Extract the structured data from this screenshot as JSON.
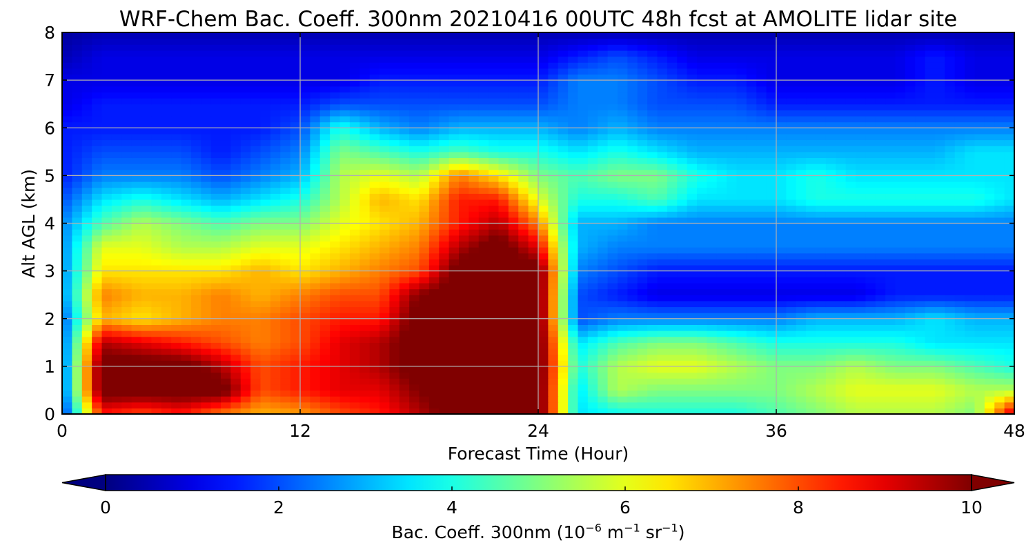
{
  "chart_data": {
    "type": "heatmap",
    "title": "WRF-Chem Bac. Coeff. 300nm  20210416 00UTC 48h fcst at AMOLITE lidar site",
    "xlabel": "Forecast Time (Hour)",
    "ylabel": "Alt AGL (km)",
    "xlim": [
      0,
      48
    ],
    "ylim": [
      0,
      8
    ],
    "xticks": [
      0,
      12,
      24,
      36,
      48
    ],
    "yticks": [
      0,
      1,
      2,
      3,
      4,
      5,
      6,
      7,
      8
    ],
    "grid": true,
    "colormap": "jet",
    "colorbar": {
      "label_main": "Bac. Coeff. 300nm  (10",
      "label_exp1": "−6",
      "label_mid": " m",
      "label_exp2": "−1",
      "label_mid2": " sr",
      "label_exp3": "−1",
      "label_end": ")",
      "range": [
        0,
        10
      ],
      "ticks": [
        0,
        2,
        4,
        6,
        8,
        10
      ],
      "extend": "both",
      "placement": "bottom"
    },
    "x_hours": [
      0,
      2,
      4,
      6,
      8,
      10,
      12,
      14,
      16,
      18,
      20,
      22,
      24,
      26,
      28,
      30,
      32,
      34,
      36,
      38,
      40,
      42,
      44,
      46,
      48
    ],
    "y_km": [
      0,
      0.5,
      1,
      1.5,
      2,
      2.5,
      3,
      3.5,
      4,
      4.5,
      5,
      5.5,
      6,
      6.5,
      7,
      7.5,
      8
    ],
    "values": [
      [
        1.5,
        8.5,
        8.0,
        8.5,
        7.5,
        7.0,
        7.2,
        8.0,
        8.5,
        9.5,
        10.5,
        10.5,
        10.5,
        3.5,
        3.8,
        4.0,
        4.0,
        4.0,
        4.5,
        5.0,
        5.5,
        5.5,
        5.5,
        5.0,
        9.5
      ],
      [
        2.0,
        10.5,
        10.5,
        10.5,
        10.5,
        8.0,
        8.5,
        9.0,
        9.0,
        10.0,
        10.5,
        10.5,
        10.5,
        3.5,
        5.5,
        5.0,
        5.0,
        5.0,
        5.0,
        5.5,
        6.0,
        6.0,
        6.0,
        5.5,
        5.5
      ],
      [
        2.0,
        10.5,
        10.5,
        10.5,
        9.5,
        8.0,
        8.5,
        9.0,
        9.5,
        10.5,
        10.5,
        10.5,
        10.5,
        4.0,
        5.5,
        6.0,
        6.0,
        5.5,
        5.0,
        5.0,
        5.5,
        5.0,
        5.0,
        4.5,
        4.0
      ],
      [
        2.0,
        9.5,
        9.0,
        8.5,
        8.0,
        7.5,
        8.0,
        9.0,
        9.5,
        10.5,
        10.5,
        10.5,
        10.5,
        3.5,
        4.5,
        5.0,
        5.0,
        4.5,
        4.0,
        4.0,
        4.0,
        4.0,
        3.5,
        3.5,
        3.5
      ],
      [
        2.0,
        7.0,
        6.5,
        7.0,
        7.5,
        7.5,
        8.0,
        8.5,
        8.5,
        10.5,
        10.5,
        10.5,
        10.5,
        2.0,
        2.5,
        2.5,
        2.5,
        2.5,
        2.5,
        3.0,
        3.0,
        3.0,
        3.5,
        3.0,
        3.0
      ],
      [
        2.5,
        7.5,
        7.0,
        7.0,
        7.5,
        7.0,
        7.5,
        8.0,
        8.0,
        10.0,
        10.5,
        10.5,
        10.5,
        2.0,
        1.5,
        1.0,
        1.0,
        1.0,
        1.0,
        1.0,
        1.0,
        1.5,
        1.5,
        1.5,
        1.5
      ],
      [
        2.5,
        6.5,
        6.5,
        6.5,
        6.5,
        7.0,
        6.5,
        7.0,
        7.5,
        8.0,
        10.5,
        10.5,
        10.5,
        2.5,
        2.0,
        1.5,
        1.5,
        1.5,
        1.5,
        1.5,
        1.5,
        1.5,
        1.5,
        1.5,
        1.5
      ],
      [
        2.5,
        6.0,
        6.0,
        5.5,
        5.5,
        6.0,
        6.0,
        6.5,
        7.0,
        7.5,
        9.5,
        10.5,
        9.0,
        3.0,
        2.5,
        2.5,
        2.5,
        2.5,
        2.5,
        2.5,
        2.5,
        2.5,
        2.5,
        2.5,
        2.5
      ],
      [
        2.5,
        4.5,
        5.5,
        5.0,
        4.5,
        5.0,
        5.0,
        6.0,
        6.5,
        7.0,
        8.5,
        9.5,
        7.5,
        3.0,
        3.0,
        2.5,
        2.5,
        2.5,
        2.5,
        2.5,
        2.5,
        2.5,
        2.5,
        2.5,
        2.5
      ],
      [
        2.0,
        3.5,
        4.0,
        3.5,
        3.0,
        3.5,
        4.0,
        5.5,
        7.0,
        6.5,
        8.5,
        8.5,
        6.0,
        4.0,
        4.0,
        4.5,
        3.5,
        3.5,
        3.5,
        4.0,
        4.0,
        4.0,
        4.0,
        4.0,
        3.5
      ],
      [
        1.5,
        2.5,
        2.5,
        2.5,
        2.0,
        2.5,
        3.0,
        5.5,
        6.0,
        5.5,
        7.5,
        6.5,
        5.0,
        4.5,
        5.0,
        5.0,
        4.0,
        3.5,
        3.5,
        4.0,
        3.5,
        3.5,
        3.5,
        3.5,
        3.5
      ],
      [
        1.5,
        2.0,
        2.0,
        2.0,
        1.5,
        2.0,
        2.5,
        5.0,
        4.5,
        4.0,
        4.5,
        4.0,
        4.0,
        3.5,
        4.0,
        3.5,
        3.0,
        3.0,
        3.0,
        3.0,
        3.0,
        3.0,
        3.0,
        3.5,
        3.5
      ],
      [
        1.5,
        1.5,
        1.5,
        1.5,
        1.5,
        1.5,
        2.0,
        4.0,
        3.0,
        2.5,
        3.0,
        3.0,
        3.0,
        2.5,
        3.0,
        2.5,
        2.5,
        2.5,
        2.5,
        2.5,
        2.5,
        2.5,
        2.5,
        2.5,
        2.5
      ],
      [
        1.0,
        1.5,
        1.5,
        1.5,
        1.5,
        1.5,
        1.5,
        2.0,
        2.0,
        2.0,
        2.0,
        2.0,
        2.0,
        2.5,
        2.5,
        2.0,
        2.0,
        2.0,
        1.5,
        1.5,
        1.5,
        1.5,
        1.5,
        1.5,
        1.5
      ],
      [
        1.0,
        1.0,
        1.0,
        1.0,
        1.0,
        1.0,
        1.0,
        1.0,
        1.5,
        1.5,
        1.5,
        1.5,
        1.5,
        2.5,
        2.5,
        2.0,
        1.5,
        1.5,
        1.0,
        1.0,
        1.0,
        1.0,
        1.5,
        1.0,
        1.0
      ],
      [
        0.5,
        1.0,
        1.0,
        1.0,
        1.0,
        1.0,
        1.0,
        1.0,
        1.0,
        1.0,
        1.0,
        1.0,
        1.0,
        1.5,
        2.0,
        1.5,
        1.0,
        1.0,
        1.0,
        1.0,
        1.0,
        1.0,
        1.5,
        1.0,
        1.0
      ],
      [
        0.3,
        0.5,
        0.5,
        0.5,
        0.5,
        0.5,
        0.5,
        0.5,
        0.5,
        0.5,
        0.5,
        0.5,
        0.5,
        0.5,
        0.5,
        0.5,
        0.5,
        0.5,
        0.5,
        0.5,
        0.5,
        0.5,
        0.5,
        0.5,
        0.5
      ]
    ]
  }
}
